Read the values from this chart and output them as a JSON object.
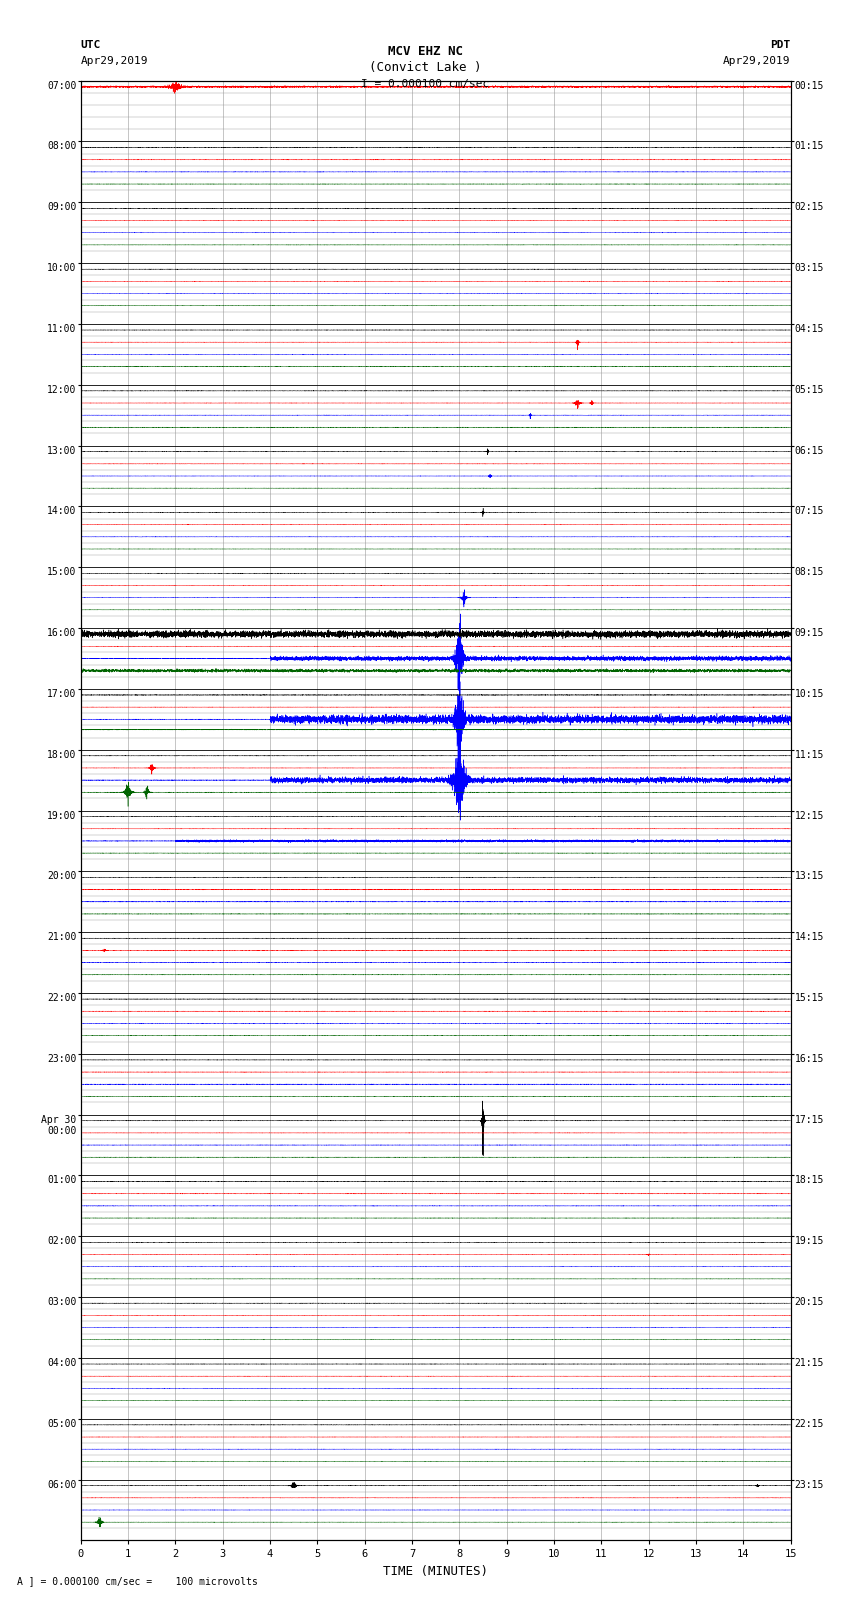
{
  "title_line1": "MCV EHZ NC",
  "title_line2": "(Convict Lake )",
  "title_scale": "I = 0.000100 cm/sec",
  "label_utc": "UTC",
  "label_date_left": "Apr29,2019",
  "label_pdt": "PDT",
  "label_date_right": "Apr29,2019",
  "xlabel": "TIME (MINUTES)",
  "footer": "A ] = 0.000100 cm/sec =    100 microvolts",
  "xlim": [
    0,
    15
  ],
  "xticks": [
    0,
    1,
    2,
    3,
    4,
    5,
    6,
    7,
    8,
    9,
    10,
    11,
    12,
    13,
    14,
    15
  ],
  "num_rows": 24,
  "bg_color": "#ffffff",
  "grid_color": "#999999",
  "figwidth": 8.5,
  "figheight": 16.13,
  "left_labels": [
    "07:00",
    "08:00",
    "09:00",
    "10:00",
    "11:00",
    "12:00",
    "13:00",
    "14:00",
    "15:00",
    "16:00",
    "17:00",
    "18:00",
    "19:00",
    "20:00",
    "21:00",
    "22:00",
    "23:00",
    "Apr 30\n00:00",
    "01:00",
    "02:00",
    "03:00",
    "04:00",
    "05:00",
    "06:00"
  ],
  "right_labels": [
    "00:15",
    "01:15",
    "02:15",
    "03:15",
    "04:15",
    "05:15",
    "06:15",
    "07:15",
    "08:15",
    "09:15",
    "10:15",
    "11:15",
    "12:15",
    "13:15",
    "14:15",
    "15:15",
    "16:15",
    "17:15",
    "18:15",
    "19:15",
    "20:15",
    "21:15",
    "22:15",
    "23:15"
  ],
  "sub_colors": [
    "black",
    "red",
    "blue",
    "darkgreen"
  ]
}
